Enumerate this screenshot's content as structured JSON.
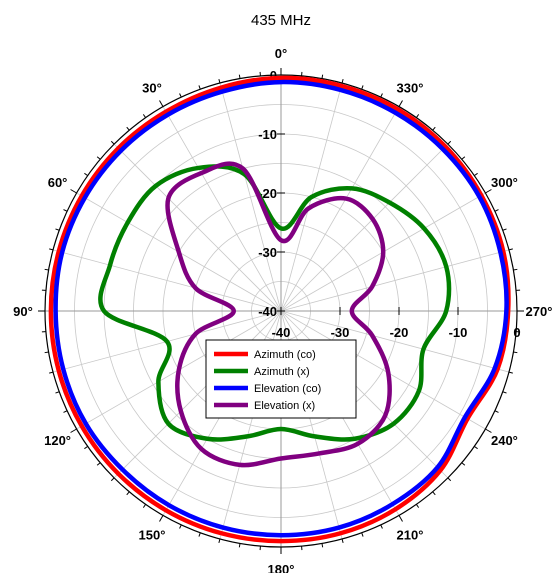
{
  "chart_data": {
    "type": "polar-line",
    "title": "435 MHz",
    "r_unit": "dB",
    "r_range": [
      -40,
      0
    ],
    "r_ticks": [
      0,
      -10,
      -20,
      -30,
      -40
    ],
    "r_tick_labels_vertical": [
      "0",
      "-10",
      "-20",
      "-30",
      "-40"
    ],
    "r_tick_labels_horizontal": [
      "-40",
      "-30",
      "-20",
      "-10",
      "0"
    ],
    "angle_labels": [
      "0°",
      "30°",
      "60°",
      "90°",
      "120°",
      "150°",
      "180°",
      "210°",
      "240°",
      "270°",
      "300°",
      "330°"
    ],
    "angle_direction": "counterclockwise",
    "angle_zero": "top",
    "grid": true,
    "legend_position": "lower-center",
    "theta": [
      0,
      15,
      30,
      45,
      60,
      75,
      90,
      105,
      120,
      135,
      150,
      165,
      180,
      195,
      210,
      225,
      240,
      255,
      270,
      285,
      300,
      315,
      330,
      345
    ],
    "series": [
      {
        "name": "Azimuth (co)",
        "color": "#ff0000",
        "values": [
          -0.5,
          -0.8,
          -1,
          -1,
          -1,
          -1,
          -1,
          -1,
          -1,
          -1,
          -1,
          -1,
          -1,
          -1,
          -1.2,
          -1.8,
          -3.5,
          -2,
          -1.5,
          -1,
          -0.8,
          -0.6,
          -0.5,
          -0.5
        ]
      },
      {
        "name": "Azimuth (x)",
        "color": "#008000",
        "values": [
          -26,
          -16,
          -12,
          -10,
          -10,
          -10,
          -10,
          -20,
          -16,
          -13,
          -15,
          -18,
          -20,
          -18,
          -15,
          -13,
          -13,
          -15,
          -12,
          -11,
          -12,
          -14,
          -16,
          -20
        ]
      },
      {
        "name": "Elevation (co)",
        "color": "#0000ff",
        "values": [
          -1.2,
          -1.5,
          -1.6,
          -1.6,
          -1.6,
          -1.6,
          -1.8,
          -1.8,
          -1.8,
          -2,
          -2,
          -2,
          -2,
          -2,
          -2.2,
          -2.5,
          -4,
          -2.5,
          -1.8,
          -1.5,
          -1.2,
          -1.2,
          -1.2,
          -1.2
        ]
      },
      {
        "name": "Elevation (x)",
        "color": "#800080",
        "values": [
          -28,
          -15,
          -13,
          -13,
          -20,
          -25,
          -32,
          -25,
          -20,
          -16,
          -13,
          -13,
          -15,
          -15,
          -14,
          -15,
          -19,
          -24,
          -28,
          -24,
          -20,
          -18,
          -18,
          -22
        ]
      }
    ]
  }
}
